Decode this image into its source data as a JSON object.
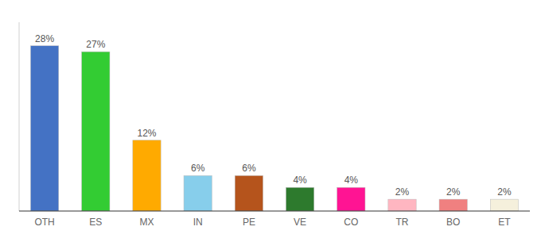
{
  "chart_data": {
    "type": "bar",
    "categories": [
      "OTH",
      "ES",
      "MX",
      "IN",
      "PE",
      "VE",
      "CO",
      "TR",
      "BO",
      "ET"
    ],
    "values": [
      28,
      27,
      12,
      6,
      6,
      4,
      4,
      2,
      2,
      2
    ],
    "value_labels": [
      "28%",
      "27%",
      "12%",
      "6%",
      "6%",
      "4%",
      "4%",
      "2%",
      "2%",
      "2%"
    ],
    "colors": [
      "#4472c4",
      "#33cc33",
      "#ffaa00",
      "#87ceeb",
      "#b5541c",
      "#2d7a2d",
      "#ff1493",
      "#ffb6c1",
      "#f08080",
      "#f5f0dc"
    ],
    "ylim": [
      0,
      32
    ],
    "data_labels": true,
    "tick_labels": "x"
  }
}
